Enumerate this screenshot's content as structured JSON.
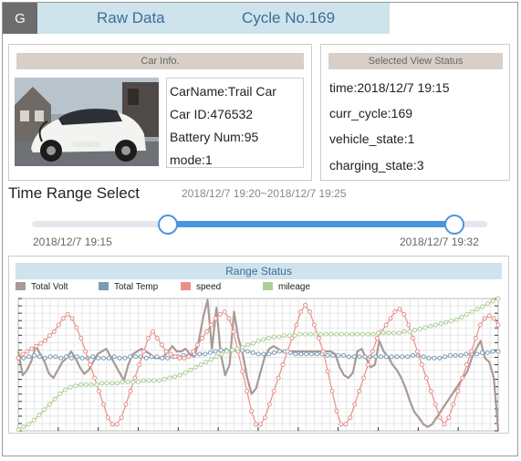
{
  "header": {
    "badge": "G",
    "title": "Raw Data",
    "cycle": "Cycle No.169"
  },
  "car_info": {
    "title": "Car Info.",
    "lines": [
      "CarName:Trail Car",
      "Car ID:476532",
      "Battery Num:95",
      "mode:1"
    ]
  },
  "status": {
    "title": "Selected View Status",
    "lines": [
      "time:2018/12/7 19:15",
      "curr_cycle:169",
      "vehicle_state:1",
      "charging_state:3"
    ]
  },
  "time_range": {
    "title": "Time Range Select",
    "range_text": "2018/12/7 19:20~2018/12/7 19:25",
    "start_label": "2018/12/7 19:15",
    "end_label": "2018/12/7 19:32",
    "selection_start_fraction": 0.3,
    "selection_end_fraction": 0.93
  },
  "chart_data": {
    "type": "line",
    "title": "Range Status",
    "grid": true,
    "legend_position": "top-left",
    "series": [
      {
        "name": "Total Volt",
        "color": "#a89a94",
        "values": [
          0.6,
          0.42,
          0.46,
          0.53,
          0.64,
          0.58,
          0.52,
          0.43,
          0.4,
          0.46,
          0.52,
          0.55,
          0.6,
          0.55,
          0.48,
          0.43,
          0.46,
          0.52,
          0.58,
          0.6,
          0.62,
          0.56,
          0.5,
          0.44,
          0.38,
          0.5,
          0.58,
          0.6,
          0.62,
          0.6,
          0.58,
          0.55,
          0.55,
          0.56,
          0.6,
          0.64,
          0.6,
          0.6,
          0.62,
          0.58,
          0.56,
          0.68,
          0.86,
          0.99,
          0.62,
          0.93,
          0.58,
          0.42,
          0.5,
          0.9,
          0.7,
          0.58,
          0.4,
          0.28,
          0.32,
          0.44,
          0.56,
          0.62,
          0.64,
          0.62,
          0.6,
          0.6,
          0.6,
          0.6,
          0.6,
          0.6,
          0.6,
          0.6,
          0.6,
          0.6,
          0.6,
          0.6,
          0.58,
          0.48,
          0.42,
          0.4,
          0.44,
          0.6,
          0.62,
          0.55,
          0.48,
          0.5,
          0.68,
          0.6,
          0.56,
          0.5,
          0.46,
          0.4,
          0.32,
          0.22,
          0.14,
          0.1,
          0.05,
          0.03,
          0.05,
          0.1,
          0.15,
          0.2,
          0.25,
          0.3,
          0.35,
          0.4,
          0.45,
          0.55,
          0.62,
          0.68,
          0.55,
          0.52,
          0.4,
          0.01
        ]
      },
      {
        "name": "Total Temp",
        "color": "#7b9db4",
        "values": [
          0.55,
          0.55,
          0.56,
          0.57,
          0.56,
          0.55,
          0.56,
          0.56,
          0.55,
          0.56,
          0.55,
          0.56,
          0.55,
          0.55,
          0.56,
          0.55,
          0.55,
          0.55,
          0.56,
          0.55,
          0.55,
          0.56,
          0.56,
          0.56,
          0.55,
          0.56,
          0.56,
          0.55,
          0.55,
          0.56,
          0.56,
          0.57,
          0.57,
          0.58,
          0.58,
          0.58,
          0.59,
          0.6,
          0.61,
          0.61,
          0.61,
          0.61,
          0.61,
          0.6,
          0.59,
          0.58,
          0.58,
          0.58,
          0.59,
          0.6,
          0.6,
          0.59,
          0.58,
          0.58,
          0.58,
          0.58,
          0.58,
          0.58,
          0.57,
          0.57,
          0.57,
          0.57,
          0.56,
          0.56,
          0.56,
          0.56,
          0.56,
          0.56,
          0.56,
          0.56,
          0.56,
          0.56,
          0.56,
          0.56,
          0.57,
          0.57,
          0.56,
          0.55,
          0.55,
          0.55,
          0.56,
          0.57,
          0.57,
          0.57,
          0.58,
          0.58,
          0.58,
          0.59,
          0.59,
          0.6,
          0.6
        ]
      },
      {
        "name": "speed",
        "color": "#e8918c",
        "values": [
          0.55,
          0.58,
          0.6,
          0.62,
          0.64,
          0.66,
          0.68,
          0.72,
          0.75,
          0.8,
          0.85,
          0.88,
          0.85,
          0.78,
          0.7,
          0.6,
          0.5,
          0.4,
          0.3,
          0.2,
          0.1,
          0.05,
          0.05,
          0.1,
          0.2,
          0.3,
          0.4,
          0.5,
          0.6,
          0.7,
          0.75,
          0.7,
          0.65,
          0.6,
          0.58,
          0.56,
          0.55,
          0.55,
          0.56,
          0.6,
          0.65,
          0.7,
          0.75,
          0.8,
          0.85,
          0.88,
          0.9,
          0.85,
          0.75,
          0.6,
          0.45,
          0.3,
          0.15,
          0.05,
          0.05,
          0.1,
          0.2,
          0.3,
          0.4,
          0.5,
          0.6,
          0.7,
          0.8,
          0.9,
          0.95,
          0.9,
          0.8,
          0.7,
          0.6,
          0.45,
          0.3,
          0.15,
          0.05,
          0.05,
          0.1,
          0.2,
          0.3,
          0.4,
          0.5,
          0.6,
          0.7,
          0.75,
          0.8,
          0.85,
          0.9,
          0.92,
          0.88,
          0.8,
          0.7,
          0.6,
          0.5,
          0.4,
          0.3,
          0.2,
          0.1,
          0.05,
          0.1,
          0.2,
          0.3,
          0.4,
          0.5,
          0.6,
          0.7,
          0.8,
          0.85,
          0.87,
          0.85,
          0.8
        ]
      },
      {
        "name": "mileage",
        "color": "#aecf98",
        "values": [
          0.01,
          0.03,
          0.05,
          0.08,
          0.12,
          0.16,
          0.2,
          0.24,
          0.28,
          0.31,
          0.33,
          0.34,
          0.35,
          0.35,
          0.35,
          0.35,
          0.36,
          0.36,
          0.36,
          0.36,
          0.37,
          0.37,
          0.37,
          0.37,
          0.38,
          0.38,
          0.38,
          0.38,
          0.39,
          0.4,
          0.41,
          0.42,
          0.44,
          0.46,
          0.48,
          0.5,
          0.52,
          0.54,
          0.56,
          0.58,
          0.6,
          0.61,
          0.62,
          0.63,
          0.65,
          0.66,
          0.68,
          0.69,
          0.7,
          0.71,
          0.71,
          0.72,
          0.72,
          0.72,
          0.73,
          0.73,
          0.73,
          0.73,
          0.73,
          0.73,
          0.73,
          0.73,
          0.73,
          0.73,
          0.73,
          0.73,
          0.73,
          0.73,
          0.73,
          0.74,
          0.74,
          0.74,
          0.74,
          0.74,
          0.75,
          0.75,
          0.76,
          0.77,
          0.78,
          0.79,
          0.8,
          0.81,
          0.82,
          0.83,
          0.84,
          0.86,
          0.88,
          0.9,
          0.92,
          0.94,
          0.96,
          0.98,
          1.0
        ]
      }
    ]
  },
  "colors": {
    "accent": "#4b95e0",
    "header_bg": "#cfe3ec",
    "header_text": "#3a6f96",
    "panel_title_bg": "#d8cfc8"
  },
  "icons": {
    "car_photo": "electric-car-photo"
  }
}
